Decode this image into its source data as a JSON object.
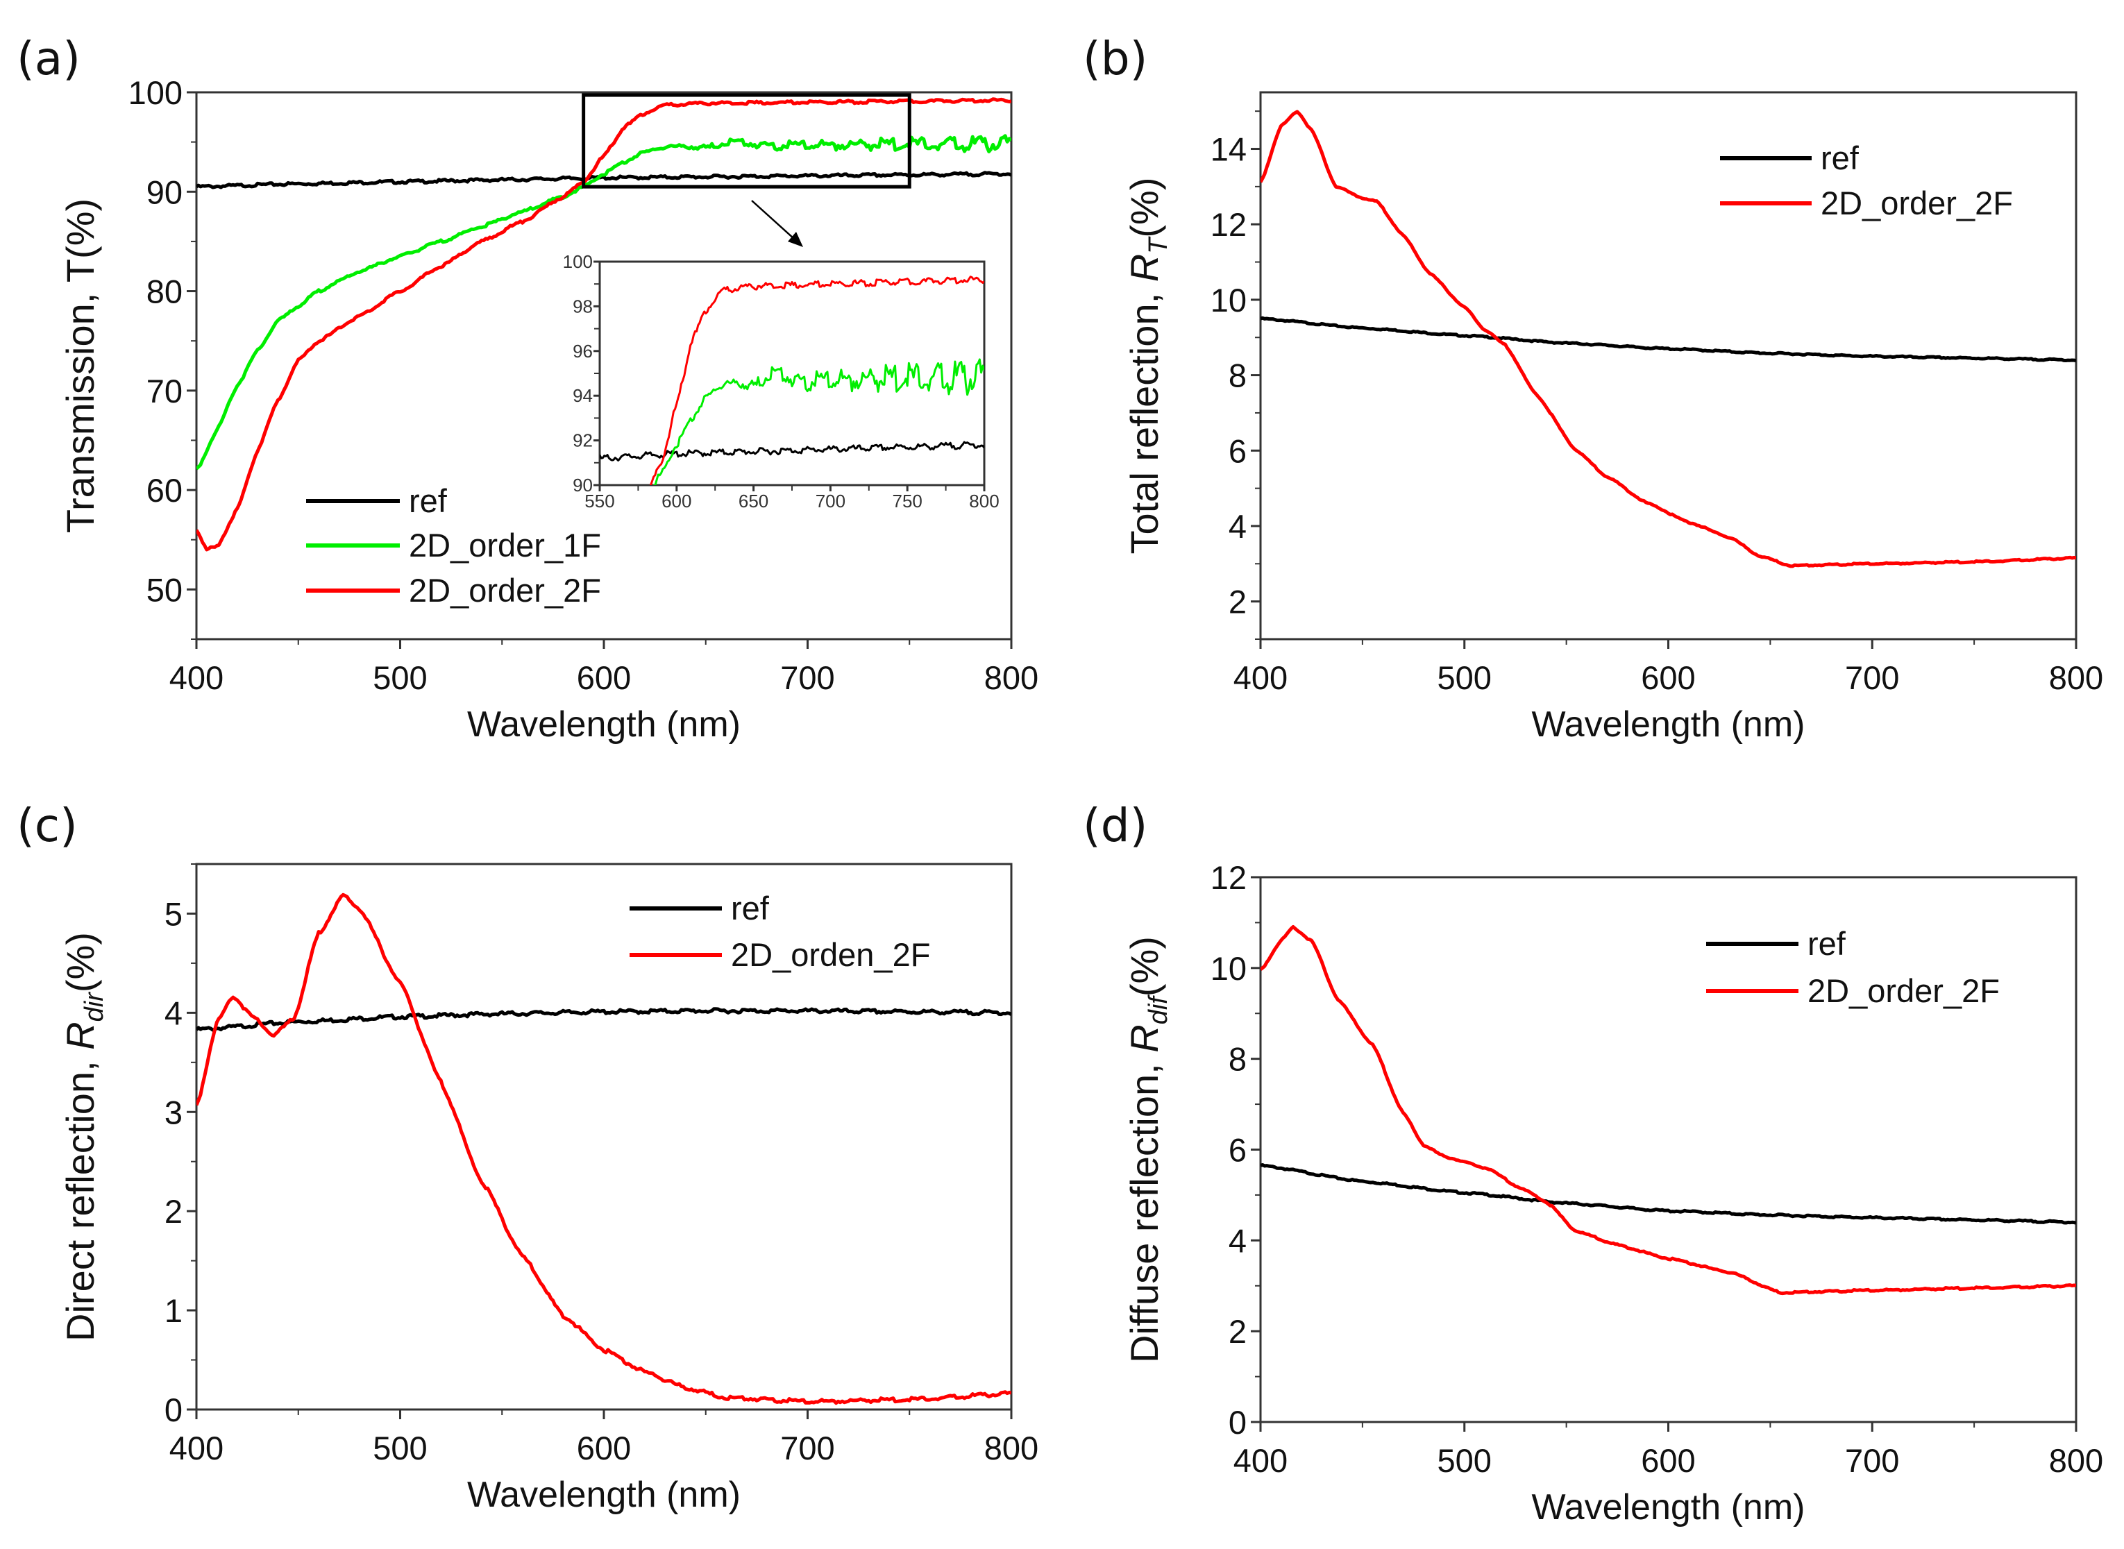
{
  "chart_data": [
    {
      "type": "line",
      "panel_label": "(a)",
      "xlabel": "Wavelength (nm)",
      "ylabel": {
        "prefix": "Transmission,  T(%)",
        "var": "",
        "sub": "",
        "suffix": ""
      },
      "xlim": [
        400,
        800
      ],
      "ylim": [
        45,
        100
      ],
      "xticks": [
        400,
        500,
        600,
        700,
        800
      ],
      "yticks": [
        50,
        60,
        70,
        80,
        90,
        100
      ],
      "xminor": 50,
      "yminor": 5,
      "legend": "left-bottom",
      "series": [
        {
          "name": "ref",
          "color": "#000000",
          "x": [
            400,
            450,
            500,
            550,
            600,
            650,
            700,
            750,
            800
          ],
          "y": [
            90.5,
            90.8,
            91.0,
            91.2,
            91.4,
            91.5,
            91.6,
            91.7,
            91.8
          ]
        },
        {
          "name": "2D_order_1F",
          "color": "#00ee00",
          "x": [
            400,
            410,
            420,
            430,
            440,
            450,
            460,
            470,
            480,
            500,
            520,
            540,
            560,
            580,
            590,
            600,
            610,
            620,
            630,
            640,
            650,
            663,
            680,
            700,
            750,
            800
          ],
          "y": [
            62,
            66,
            70.5,
            74,
            77,
            78.5,
            80,
            81,
            82,
            83.5,
            85,
            86.5,
            88,
            89.5,
            90.5,
            91.8,
            93,
            94,
            94.5,
            94.6,
            94.4,
            95.1,
            94.6,
            94.7,
            94.8,
            94.8
          ]
        },
        {
          "name": "2D_order_2F",
          "color": "#ff0000",
          "x": [
            400,
            405,
            410,
            420,
            430,
            440,
            450,
            460,
            480,
            500,
            520,
            540,
            560,
            580,
            590,
            600,
            610,
            620,
            630,
            650,
            700,
            750,
            800
          ],
          "y": [
            56,
            54,
            54.3,
            58,
            64,
            69,
            73,
            75,
            77.5,
            80,
            82.5,
            85,
            87,
            89.5,
            91,
            93.6,
            96.5,
            97.9,
            98.7,
            98.9,
            99.0,
            99.1,
            99.2
          ]
        }
      ],
      "inset": {
        "xlim": [
          550,
          800
        ],
        "ylim": [
          90,
          100
        ],
        "xticks": [
          550,
          600,
          650,
          700,
          750,
          800
        ],
        "yticks": [
          90,
          92,
          94,
          96,
          98,
          100
        ],
        "zoom_box": {
          "xlim": [
            590,
            750
          ],
          "ylim": [
            90.5,
            100
          ]
        }
      }
    },
    {
      "type": "line",
      "panel_label": "(b)",
      "xlabel": "Wavelength (nm)",
      "ylabel": {
        "prefix": "Total reflection,  ",
        "var": "R",
        "sub": "T",
        "suffix": "(%)"
      },
      "xlim": [
        400,
        800
      ],
      "ylim": [
        1,
        15.5
      ],
      "xticks": [
        400,
        500,
        600,
        700,
        800
      ],
      "yticks": [
        2,
        4,
        6,
        8,
        10,
        12,
        14
      ],
      "xminor": 50,
      "yminor": 1,
      "legend": "top-right",
      "series": [
        {
          "name": "ref",
          "color": "#000000",
          "x": [
            400,
            450,
            500,
            550,
            600,
            650,
            700,
            750,
            800
          ],
          "y": [
            9.5,
            9.25,
            9.05,
            8.85,
            8.7,
            8.58,
            8.5,
            8.45,
            8.4
          ]
        },
        {
          "name": "2D_order_2F",
          "color": "#ff0000",
          "x": [
            400,
            410,
            418,
            425,
            437,
            450,
            457,
            470,
            483,
            500,
            510,
            520,
            535,
            555,
            570,
            590,
            610,
            630,
            645,
            660,
            700,
            750,
            800
          ],
          "y": [
            13.1,
            14.6,
            15.0,
            14.5,
            13.0,
            12.7,
            12.6,
            11.7,
            10.7,
            9.8,
            9.2,
            8.8,
            7.5,
            6.0,
            5.3,
            4.6,
            4.1,
            3.7,
            3.2,
            2.95,
            3.0,
            3.05,
            3.15
          ]
        }
      ]
    },
    {
      "type": "line",
      "panel_label": "(c)",
      "xlabel": "Wavelength (nm)",
      "ylabel": {
        "prefix": "Direct reflection,  ",
        "var": "R",
        "sub": "dir",
        "suffix": "(%)"
      },
      "xlim": [
        400,
        800
      ],
      "ylim": [
        0,
        5.5
      ],
      "xticks": [
        400,
        500,
        600,
        700,
        800
      ],
      "yticks": [
        0,
        1,
        2,
        3,
        4,
        5
      ],
      "xminor": 50,
      "yminor": 0.5,
      "legend": "top-right",
      "series": [
        {
          "name": "ref",
          "color": "#000000",
          "x": [
            400,
            450,
            500,
            550,
            600,
            650,
            700,
            750,
            800
          ],
          "y": [
            3.83,
            3.91,
            3.96,
            3.99,
            4.01,
            4.02,
            4.02,
            4.01,
            4.0
          ]
        },
        {
          "name": "2D_orden_2F",
          "color": "#ff0000",
          "x": [
            400,
            410,
            418,
            428,
            438,
            448,
            460,
            472,
            480,
            500,
            520,
            540,
            560,
            580,
            600,
            620,
            640,
            660,
            700,
            750,
            800
          ],
          "y": [
            3.05,
            3.9,
            4.17,
            3.95,
            3.77,
            3.95,
            4.8,
            5.18,
            5.05,
            4.3,
            3.3,
            2.3,
            1.55,
            0.95,
            0.6,
            0.38,
            0.22,
            0.12,
            0.08,
            0.1,
            0.16
          ]
        }
      ]
    },
    {
      "type": "line",
      "panel_label": "(d)",
      "xlabel": "Wavelength (nm)",
      "ylabel": {
        "prefix": "Diffuse reflection,  ",
        "var": "R",
        "sub": "dif",
        "suffix": "(%)"
      },
      "xlim": [
        400,
        800
      ],
      "ylim": [
        0,
        12
      ],
      "xticks": [
        400,
        500,
        600,
        700,
        800
      ],
      "yticks": [
        0,
        2,
        4,
        6,
        8,
        10,
        12
      ],
      "xminor": 50,
      "yminor": 1,
      "legend": "top-right",
      "series": [
        {
          "name": "ref",
          "color": "#000000",
          "x": [
            400,
            450,
            500,
            550,
            600,
            650,
            700,
            750,
            800
          ],
          "y": [
            5.65,
            5.3,
            5.05,
            4.82,
            4.65,
            4.56,
            4.5,
            4.45,
            4.4
          ]
        },
        {
          "name": "2D_order_2F",
          "color": "#ff0000",
          "x": [
            400,
            410,
            416,
            425,
            438,
            455,
            470,
            480,
            490,
            510,
            530,
            540,
            555,
            575,
            600,
            630,
            655,
            700,
            750,
            800
          ],
          "y": [
            9.95,
            10.6,
            10.9,
            10.6,
            9.3,
            8.3,
            6.8,
            6.1,
            5.85,
            5.6,
            5.1,
            4.85,
            4.2,
            3.9,
            3.6,
            3.3,
            2.85,
            2.9,
            2.95,
            3.0
          ]
        }
      ]
    }
  ]
}
